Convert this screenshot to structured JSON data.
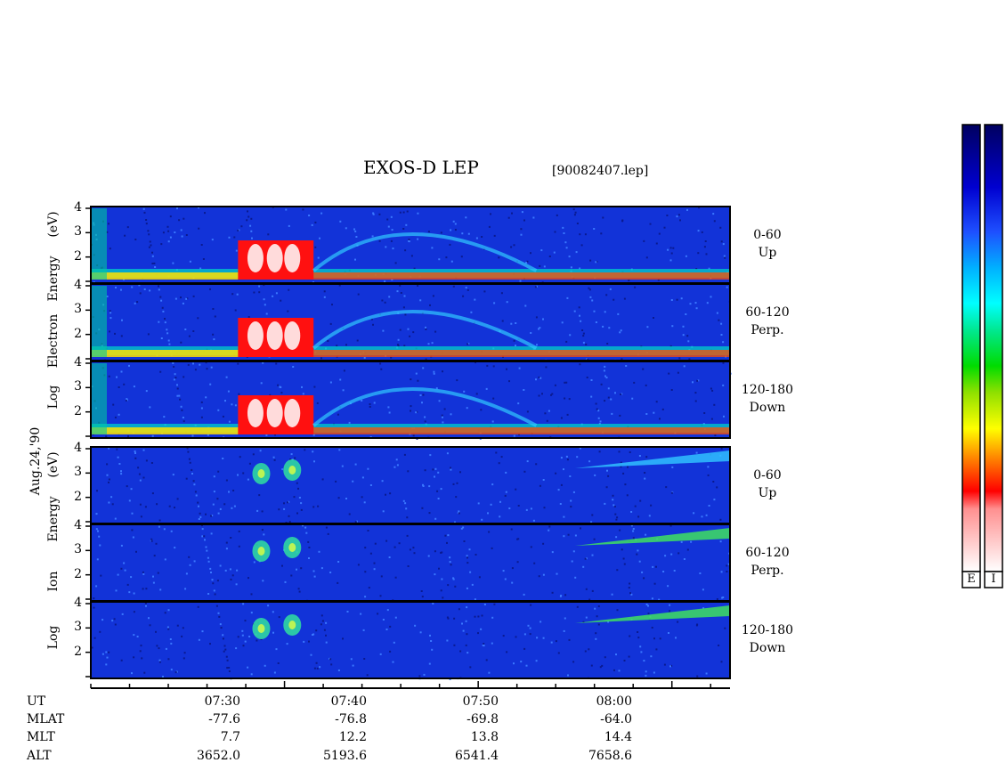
{
  "chart_data": {
    "type": "heatmap",
    "title": "EXOS-D LEP",
    "filename": "[90082407.lep]",
    "date_label": "Aug.24,'90",
    "groups": [
      {
        "species": "Electron",
        "ylabel_parts": [
          "Log",
          "Electron",
          "Energy",
          "(eV)"
        ],
        "panels": [
          {
            "pitch_angle": "0-60",
            "direction": "Up"
          },
          {
            "pitch_angle": "60-120",
            "direction": "Perp."
          },
          {
            "pitch_angle": "120-180",
            "direction": "Down"
          }
        ]
      },
      {
        "species": "Ion",
        "ylabel_parts": [
          "Log",
          "Ion",
          "Energy",
          "(eV)"
        ],
        "panels": [
          {
            "pitch_angle": "0-60",
            "direction": "Up"
          },
          {
            "pitch_angle": "60-120",
            "direction": "Perp."
          },
          {
            "pitch_angle": "120-180",
            "direction": "Down"
          }
        ]
      }
    ],
    "ylim": [
      1,
      4
    ],
    "yticks": [
      1,
      2,
      3,
      4
    ],
    "ytick_labels": [
      "",
      "2",
      "3",
      "4"
    ],
    "xlim_minutes": [
      440,
      473
    ],
    "major_ticks_minutes": [
      450,
      460,
      470,
      480
    ],
    "minor_tick_step_minutes": 2,
    "colorbar": {
      "labels": [
        "E",
        "I"
      ],
      "colors": [
        "#000060",
        "#0000c8",
        "#1e64ff",
        "#00c8ff",
        "#00ffff",
        "#00e65a",
        "#00dc00",
        "#78dc00",
        "#ffff00",
        "#ffa000",
        "#ff0000",
        "#ffffff"
      ]
    },
    "ephemeris": {
      "row_labels": [
        "UT",
        "MLAT",
        "MLT",
        "ALT"
      ],
      "columns": [
        {
          "UT": "07:30",
          "MLAT": "-77.6",
          "MLT": "7.7",
          "ALT": "3652.0"
        },
        {
          "UT": "07:40",
          "MLAT": "-76.8",
          "MLT": "12.2",
          "ALT": "5193.6"
        },
        {
          "UT": "07:50",
          "MLAT": "-69.8",
          "MLT": "13.8",
          "ALT": "6541.4"
        },
        {
          "UT": "08:00",
          "MLAT": "-64.0",
          "MLT": "14.4",
          "ALT": "7658.6"
        }
      ]
    }
  }
}
